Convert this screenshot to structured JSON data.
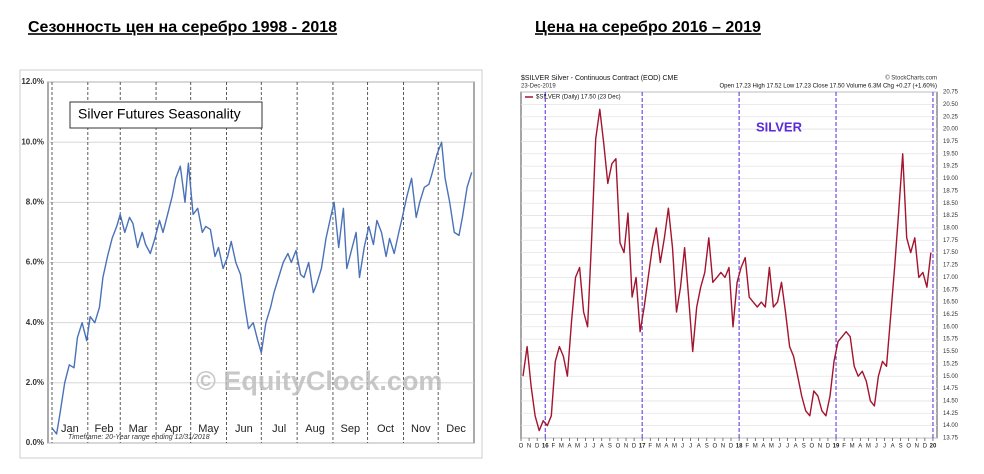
{
  "chart_data": [
    {
      "type": "line",
      "title": "Сезонность цен на серебро 1998 - 2018",
      "annotations": [
        "Silver Futures Seasonality",
        "© EquityClock.com",
        "Timeframe: 20-Year range ending 12/31/2018"
      ],
      "color": "#4a72b8",
      "x": [
        1,
        5,
        8,
        12,
        16,
        20,
        23,
        27,
        31,
        34,
        38,
        42,
        45,
        49,
        53,
        57,
        60,
        64,
        68,
        71,
        75,
        79,
        82,
        86,
        90,
        94,
        97,
        101,
        105,
        108,
        112,
        116,
        119,
        123,
        127,
        131,
        134,
        138,
        142,
        145,
        149,
        153,
        156,
        160,
        164,
        168,
        171,
        175,
        179,
        182,
        186,
        190,
        193,
        197,
        201,
        205,
        208,
        212,
        216,
        219,
        223,
        227,
        230,
        234,
        238,
        242,
        245,
        249,
        253,
        256,
        260,
        264,
        267,
        271,
        275,
        279,
        282,
        286,
        290,
        293,
        297,
        301,
        304,
        308,
        312,
        316,
        319,
        323,
        327,
        330,
        334,
        338,
        341,
        345,
        349,
        353,
        356,
        360,
        364
      ],
      "values": [
        0.5,
        0.3,
        1.0,
        2.0,
        2.6,
        2.5,
        3.5,
        4.0,
        3.4,
        4.2,
        4.0,
        4.5,
        5.5,
        6.2,
        6.8,
        7.2,
        7.6,
        7.0,
        7.5,
        7.3,
        6.5,
        7.0,
        6.6,
        6.3,
        6.8,
        7.4,
        7.0,
        7.6,
        8.2,
        8.8,
        9.2,
        8.0,
        9.3,
        7.6,
        7.8,
        7.0,
        7.2,
        7.1,
        6.2,
        6.5,
        5.8,
        6.2,
        6.7,
        6.0,
        5.6,
        4.5,
        3.8,
        4.0,
        3.4,
        3.0,
        4.0,
        4.5,
        5.0,
        5.5,
        6.0,
        6.3,
        6.0,
        6.4,
        5.6,
        5.5,
        6.0,
        5.0,
        5.3,
        5.8,
        6.8,
        7.5,
        8.0,
        6.5,
        7.8,
        5.8,
        6.4,
        7.0,
        5.5,
        6.5,
        7.2,
        6.6,
        7.4,
        7.0,
        6.2,
        6.8,
        6.3,
        7.0,
        7.5,
        8.2,
        8.8,
        7.5,
        8.0,
        8.5,
        8.6,
        9.0,
        9.6,
        10.0,
        8.8,
        8.0,
        7.0,
        6.9,
        7.5,
        8.5,
        9.0
      ],
      "xlim": [
        1,
        366
      ],
      "xticks": [
        {
          "value": 1,
          "label": "Jan"
        },
        {
          "value": 32,
          "label": "Feb"
        },
        {
          "value": 60,
          "label": "Mar"
        },
        {
          "value": 91,
          "label": "Apr"
        },
        {
          "value": 121,
          "label": "May"
        },
        {
          "value": 152,
          "label": "Jun"
        },
        {
          "value": 182,
          "label": "Jul"
        },
        {
          "value": 213,
          "label": "Aug"
        },
        {
          "value": 244,
          "label": "Sep"
        },
        {
          "value": 274,
          "label": "Oct"
        },
        {
          "value": 305,
          "label": "Nov"
        },
        {
          "value": 335,
          "label": "Dec"
        }
      ],
      "ylim": [
        0,
        12
      ],
      "yticks": [
        {
          "value": 0,
          "label": "0.0%"
        },
        {
          "value": 2,
          "label": "2.0%"
        },
        {
          "value": 4,
          "label": "4.0%"
        },
        {
          "value": 6,
          "label": "6.0%"
        },
        {
          "value": 8,
          "label": "8.0%"
        },
        {
          "value": 10,
          "label": "10.0%"
        },
        {
          "value": 12,
          "label": "12.0%"
        }
      ],
      "grid": true,
      "xgrid": true
    },
    {
      "type": "line",
      "title": "Цена на серебро 2016 – 2019",
      "annotations": [
        "$SILVER Silver - Continuous Contract (EOD) CME",
        "© StockCharts.com",
        "23-Dec-2019",
        "Open 17.23 High 17.52 Low 17.23 Close 17.50 Volume 6.3M Chg +0.27 (+1.60%)",
        "SILVER"
      ],
      "x": [
        0.25,
        0.75,
        1.25,
        1.75,
        2.25,
        2.75,
        3.25,
        3.75,
        4.25,
        4.75,
        5.25,
        5.75,
        6.25,
        6.75,
        7.25,
        7.75,
        8.25,
        8.75,
        9.25,
        9.75,
        10.25,
        10.75,
        11.25,
        11.75,
        12.25,
        12.75,
        13.25,
        13.75,
        14.25,
        14.75,
        15.25,
        15.75,
        16.25,
        16.75,
        17.25,
        17.75,
        18.25,
        18.75,
        19.25,
        19.75,
        20.25,
        20.75,
        21.25,
        21.75,
        22.25,
        22.75,
        23.25,
        23.75,
        24.25,
        24.75,
        25.25,
        25.75,
        26.25,
        26.75,
        27.25,
        27.75,
        28.25,
        28.75,
        29.25,
        29.75,
        30.25,
        30.75,
        31.25,
        31.75,
        32.25,
        32.75,
        33.25,
        33.75,
        34.25,
        34.75,
        35.25,
        35.75,
        36.25,
        36.75,
        37.25,
        37.75,
        38.25,
        38.75,
        39.25,
        39.75,
        40.25,
        40.75,
        41.25,
        41.75,
        42.25,
        42.75,
        43.25,
        43.75,
        44.25,
        44.75,
        45.25,
        45.75,
        46.25,
        46.75,
        47.25,
        47.75,
        48.25,
        48.75,
        49.25,
        49.75,
        50.25,
        50.75
      ],
      "series": [
        {
          "name": "$SILVER (Daily) 17.50 (23 Dec)",
          "color": "#a3142f",
          "values": [
            15.0,
            15.6,
            14.8,
            14.2,
            13.9,
            14.1,
            14.0,
            14.2,
            15.3,
            15.6,
            15.4,
            15.0,
            16.1,
            17.0,
            17.2,
            16.3,
            16.0,
            17.8,
            19.8,
            20.4,
            19.7,
            18.9,
            19.3,
            19.4,
            17.7,
            17.5,
            18.3,
            16.6,
            17.0,
            15.9,
            16.4,
            17.0,
            17.6,
            18.0,
            17.3,
            17.8,
            18.4,
            17.6,
            16.3,
            16.8,
            17.6,
            16.6,
            15.5,
            16.4,
            16.8,
            17.1,
            17.8,
            16.9,
            17.0,
            17.1,
            17.0,
            17.2,
            16.0,
            16.9,
            17.2,
            17.4,
            16.6,
            16.5,
            16.4,
            16.5,
            16.4,
            17.2,
            16.4,
            16.5,
            16.9,
            16.3,
            15.6,
            15.4,
            15.0,
            14.6,
            14.3,
            14.2,
            14.7,
            14.6,
            14.3,
            14.2,
            14.6,
            15.3,
            15.7,
            15.8,
            15.9,
            15.8,
            15.2,
            15.0,
            15.1,
            14.9,
            14.5,
            14.4,
            15.0,
            15.3,
            15.2,
            16.2,
            17.2,
            18.3,
            19.5,
            17.8,
            17.5,
            17.8,
            17.0,
            17.1,
            16.8,
            17.5
          ]
        }
      ],
      "xlim": [
        0,
        51.5
      ],
      "xticks": [
        {
          "value": 0,
          "label": "O"
        },
        {
          "value": 1,
          "label": "N"
        },
        {
          "value": 2,
          "label": "D"
        },
        {
          "value": 3,
          "label": "16"
        },
        {
          "value": 4,
          "label": "F"
        },
        {
          "value": 5,
          "label": "M"
        },
        {
          "value": 6,
          "label": "A"
        },
        {
          "value": 7,
          "label": "M"
        },
        {
          "value": 8,
          "label": "J"
        },
        {
          "value": 9,
          "label": "J"
        },
        {
          "value": 10,
          "label": "A"
        },
        {
          "value": 11,
          "label": "S"
        },
        {
          "value": 12,
          "label": "O"
        },
        {
          "value": 13,
          "label": "N"
        },
        {
          "value": 14,
          "label": "D"
        },
        {
          "value": 15,
          "label": "17"
        },
        {
          "value": 16,
          "label": "F"
        },
        {
          "value": 17,
          "label": "M"
        },
        {
          "value": 18,
          "label": "A"
        },
        {
          "value": 19,
          "label": "M"
        },
        {
          "value": 20,
          "label": "J"
        },
        {
          "value": 21,
          "label": "J"
        },
        {
          "value": 22,
          "label": "A"
        },
        {
          "value": 23,
          "label": "S"
        },
        {
          "value": 24,
          "label": "O"
        },
        {
          "value": 25,
          "label": "N"
        },
        {
          "value": 26,
          "label": "D"
        },
        {
          "value": 27,
          "label": "18"
        },
        {
          "value": 28,
          "label": "F"
        },
        {
          "value": 29,
          "label": "M"
        },
        {
          "value": 30,
          "label": "A"
        },
        {
          "value": 31,
          "label": "M"
        },
        {
          "value": 32,
          "label": "J"
        },
        {
          "value": 33,
          "label": "J"
        },
        {
          "value": 34,
          "label": "A"
        },
        {
          "value": 35,
          "label": "S"
        },
        {
          "value": 36,
          "label": "O"
        },
        {
          "value": 37,
          "label": "N"
        },
        {
          "value": 38,
          "label": "D"
        },
        {
          "value": 39,
          "label": "19"
        },
        {
          "value": 40,
          "label": "F"
        },
        {
          "value": 41,
          "label": "M"
        },
        {
          "value": 42,
          "label": "A"
        },
        {
          "value": 43,
          "label": "M"
        },
        {
          "value": 44,
          "label": "J"
        },
        {
          "value": 45,
          "label": "J"
        },
        {
          "value": 46,
          "label": "A"
        },
        {
          "value": 47,
          "label": "S"
        },
        {
          "value": 48,
          "label": "O"
        },
        {
          "value": 49,
          "label": "N"
        },
        {
          "value": 50,
          "label": "D"
        },
        {
          "value": 51,
          "label": "20"
        }
      ],
      "ylim": [
        13.75,
        20.75
      ],
      "yticks": [
        13.75,
        {
          "value": 14,
          "label": "14.00"
        },
        14.25,
        {
          "value": 14.5,
          "label": "14.50"
        },
        14.75,
        {
          "value": 15,
          "label": "15.00"
        },
        15.25,
        {
          "value": 15.5,
          "label": "15.50"
        },
        15.75,
        {
          "value": 16,
          "label": "16.00"
        },
        16.25,
        {
          "value": 16.5,
          "label": "16.50"
        },
        16.75,
        {
          "value": 17,
          "label": "17.00"
        },
        17.25,
        {
          "value": 17.5,
          "label": "17.50"
        },
        17.75,
        {
          "value": 18,
          "label": "18.00"
        },
        18.25,
        {
          "value": 18.5,
          "label": "18.50"
        },
        18.75,
        {
          "value": 19,
          "label": "19.00"
        },
        19.25,
        {
          "value": 19.5,
          "label": "19.50"
        },
        19.75,
        {
          "value": 20,
          "label": "20.00"
        },
        20.25,
        {
          "value": 20.5,
          "label": "20.50"
        },
        20.75
      ],
      "grid": true,
      "xgrid": false,
      "y_axis_side": "right",
      "vertical_markers": [
        3,
        15,
        27,
        39,
        51
      ],
      "marker_color": "#5b2bd6"
    }
  ]
}
